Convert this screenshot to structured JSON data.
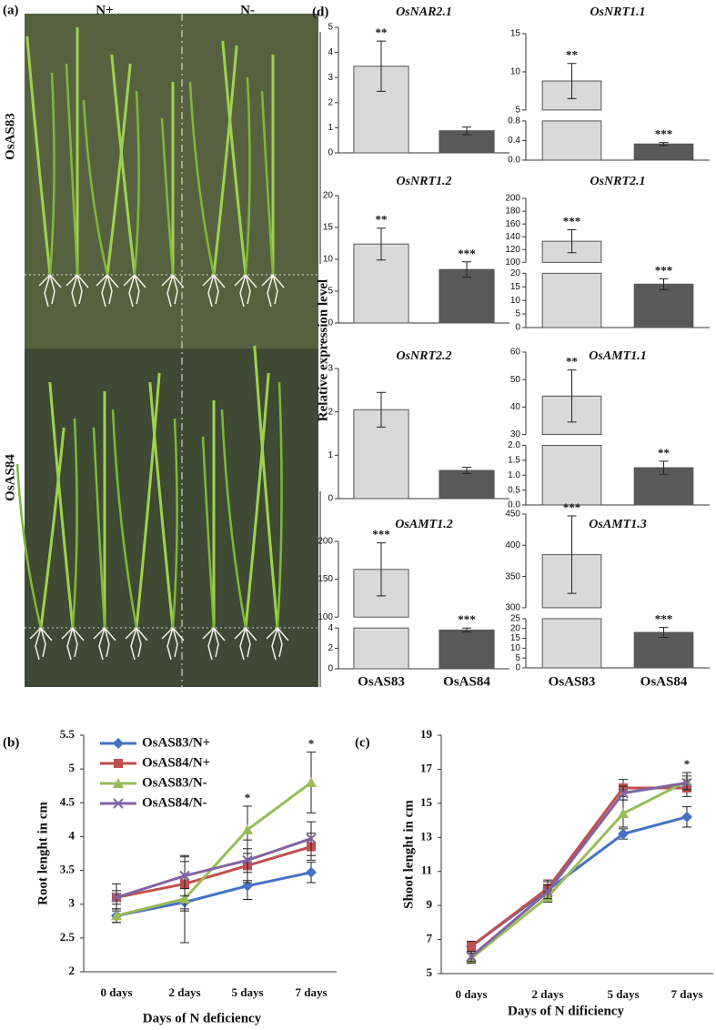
{
  "photo": {
    "label": "(a)",
    "columns": [
      "N+",
      "N-"
    ],
    "rows": [
      "OsAS83",
      "OsAS84"
    ]
  },
  "expression": {
    "label": "(d)",
    "ylabel": "Relative expression level"
  },
  "chart_data": [
    {
      "type": "bar",
      "title": "OsNAR2.1",
      "categories": [
        null,
        null
      ],
      "values": [
        3.45,
        0.88
      ],
      "errors": [
        1.0,
        0.15
      ],
      "annotations": [
        "**",
        null
      ],
      "colors": [
        "#d9d9d9",
        "#595959"
      ],
      "segments": [
        {
          "ylim": [
            0,
            5
          ],
          "yticks": [
            0,
            1,
            2,
            3,
            4,
            5
          ]
        }
      ]
    },
    {
      "type": "bar",
      "title": "OsNRT1.1",
      "categories": [
        null,
        null
      ],
      "values": [
        8.8,
        0.33
      ],
      "errors": [
        2.3,
        0.03
      ],
      "annotations": [
        "**",
        "***"
      ],
      "colors": [
        "#d9d9d9",
        "#595959"
      ],
      "segments": [
        {
          "ylim": [
            0,
            0.8
          ],
          "yticks": [
            {
              "value": 0,
              "label": "0.0"
            },
            0.4,
            0.8
          ]
        },
        {
          "ylim": [
            5,
            15
          ],
          "yticks": [
            5,
            10,
            15
          ]
        }
      ]
    },
    {
      "type": "bar",
      "title": "OsNRT1.2",
      "categories": [
        null,
        null
      ],
      "values": [
        12.4,
        8.4
      ],
      "errors": [
        2.5,
        1.2
      ],
      "annotations": [
        "**",
        "***"
      ],
      "colors": [
        "#d9d9d9",
        "#595959"
      ],
      "segments": [
        {
          "ylim": [
            0,
            20
          ],
          "yticks": [
            0,
            5,
            10,
            15,
            20
          ]
        }
      ]
    },
    {
      "type": "bar",
      "title": "OsNRT2.1",
      "categories": [
        null,
        null
      ],
      "values": [
        133,
        16
      ],
      "errors": [
        18,
        2
      ],
      "annotations": [
        "***",
        "***"
      ],
      "colors": [
        "#d9d9d9",
        "#595959"
      ],
      "segments": [
        {
          "ylim": [
            0,
            20
          ],
          "yticks": [
            0,
            5,
            10,
            15,
            20
          ]
        },
        {
          "ylim": [
            100,
            200
          ],
          "yticks": [
            100,
            120,
            140,
            160,
            180,
            200
          ]
        }
      ]
    },
    {
      "type": "bar",
      "title": "OsNRT2.2",
      "categories": [
        null,
        null
      ],
      "values": [
        2.05,
        0.65
      ],
      "errors": [
        0.4,
        0.07
      ],
      "annotations": [
        null,
        null
      ],
      "colors": [
        "#d9d9d9",
        "#595959"
      ],
      "segments": [
        {
          "ylim": [
            0,
            3
          ],
          "yticks": [
            0,
            1,
            2,
            3
          ]
        }
      ]
    },
    {
      "type": "bar",
      "title": "OsAMT1.1",
      "categories": [
        null,
        null
      ],
      "values": [
        44,
        1.25
      ],
      "errors": [
        9.5,
        0.22
      ],
      "annotations": [
        "**",
        "**"
      ],
      "colors": [
        "#d9d9d9",
        "#595959"
      ],
      "segments": [
        {
          "ylim": [
            0,
            2
          ],
          "yticks": [
            {
              "value": 0,
              "label": "0.0"
            },
            0.5,
            {
              "value": 1,
              "label": "1.0"
            },
            1.5,
            {
              "value": 2,
              "label": "2.0"
            }
          ]
        },
        {
          "ylim": [
            30,
            60
          ],
          "yticks": [
            30,
            40,
            50,
            60
          ]
        }
      ]
    },
    {
      "type": "bar",
      "title": "OsAMT1.2",
      "categories": [
        "OsAS83",
        "OsAS84"
      ],
      "values": [
        163,
        3.8
      ],
      "errors": [
        35,
        0.2
      ],
      "annotations": [
        "***",
        "***"
      ],
      "colors": [
        "#d9d9d9",
        "#595959"
      ],
      "segments": [
        {
          "ylim": [
            0,
            4
          ],
          "yticks": [
            0,
            2,
            4
          ]
        },
        {
          "ylim": [
            100,
            200
          ],
          "yticks": [
            100,
            150,
            200
          ]
        }
      ]
    },
    {
      "type": "bar",
      "title": "OsAMT1.3",
      "categories": [
        "OsAS83",
        "OsAS84"
      ],
      "values": [
        385,
        18
      ],
      "errors": [
        62,
        2.5
      ],
      "annotations": [
        "***",
        "***"
      ],
      "colors": [
        "#d9d9d9",
        "#595959"
      ],
      "segments": [
        {
          "ylim": [
            0,
            25
          ],
          "yticks": [
            0,
            5,
            10,
            15,
            20,
            25
          ]
        },
        {
          "ylim": [
            300,
            450
          ],
          "yticks": [
            300,
            350,
            400,
            450
          ]
        }
      ]
    },
    {
      "type": "line",
      "label": "(b)",
      "xlabel": "Days of N deficiency",
      "ylabel": "Root lenght in cm",
      "legend": "upper left",
      "categories": [
        "0 days",
        "2 days",
        "5 days",
        "7 days"
      ],
      "ylim": [
        2,
        5.5
      ],
      "yticks": [
        2,
        2.5,
        3,
        3.5,
        4,
        4.5,
        5,
        5.5
      ],
      "annotations": [
        null,
        null,
        "*",
        "*"
      ],
      "series": [
        {
          "name": "OsAS83/N+",
          "color": "#4472c4",
          "marker": "diamond",
          "values": [
            2.83,
            3.03,
            3.27,
            3.47
          ],
          "errors": [
            0.1,
            0.6,
            0.2,
            0.15
          ]
        },
        {
          "name": "OsAS84/N+",
          "color": "#c0504d",
          "marker": "square",
          "values": [
            3.1,
            3.3,
            3.57,
            3.85
          ],
          "errors": [
            0.2,
            0.4,
            0.25,
            0.2
          ]
        },
        {
          "name": "OsAS83/N-",
          "color": "#9bbb59",
          "marker": "triangle",
          "values": [
            2.83,
            3.08,
            4.1,
            4.8
          ],
          "errors": [
            0.1,
            0.15,
            0.35,
            0.45
          ]
        },
        {
          "name": "OsAS84/N-",
          "color": "#8064a2",
          "marker": "x",
          "values": [
            3.1,
            3.42,
            3.65,
            3.97
          ],
          "errors": [
            0.1,
            0.3,
            0.3,
            0.25
          ]
        }
      ]
    },
    {
      "type": "line",
      "label": "(c)",
      "xlabel": "Days  of N dificiency",
      "ylabel": "Shoot lenght in cm",
      "categories": [
        "0 days",
        "2 days",
        "5 days",
        "7 days"
      ],
      "ylim": [
        5,
        19
      ],
      "yticks": [
        5,
        7,
        9,
        11,
        13,
        15,
        17,
        19
      ],
      "annotations": [
        null,
        null,
        null,
        "*"
      ],
      "series": [
        {
          "color": "#4472c4",
          "marker": "diamond",
          "values": [
            6.6,
            9.9,
            13.2,
            14.2
          ],
          "errors": [
            0.3,
            0.5,
            0.3,
            0.6
          ]
        },
        {
          "color": "#c0504d",
          "marker": "square",
          "values": [
            6.6,
            10.0,
            15.9,
            15.9
          ],
          "errors": [
            0.3,
            0.5,
            0.5,
            0.5
          ]
        },
        {
          "color": "#9bbb59",
          "marker": "triangle",
          "values": [
            5.9,
            9.5,
            14.4,
            16.3
          ],
          "errors": [
            0.3,
            0.3,
            0.8,
            0.5
          ]
        },
        {
          "color": "#8064a2",
          "marker": "x",
          "values": [
            6.0,
            9.8,
            15.6,
            16.2
          ],
          "errors": [
            0.3,
            0.4,
            0.4,
            0.4
          ]
        }
      ]
    }
  ]
}
